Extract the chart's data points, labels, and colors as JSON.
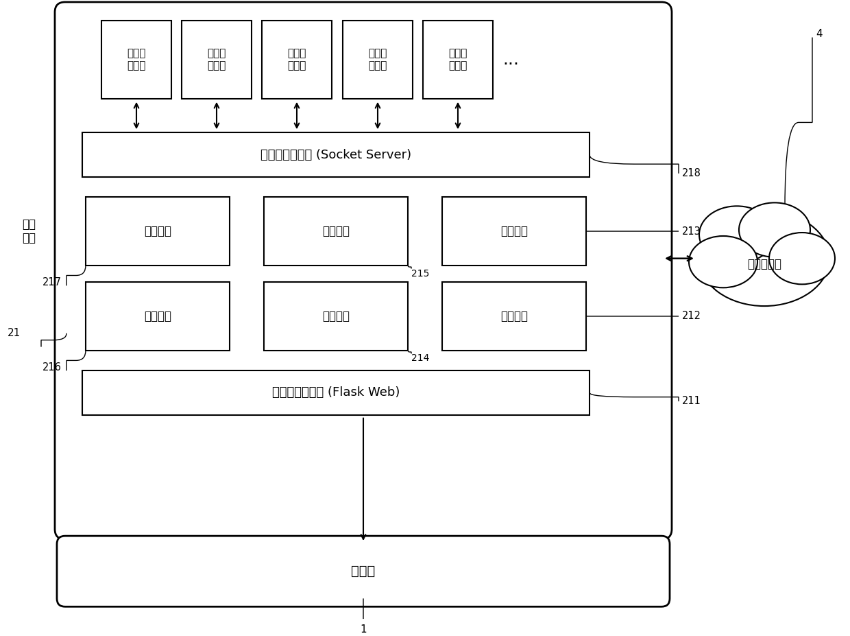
{
  "bg_color": "#ffffff",
  "box_color": "#ffffff",
  "box_edge_color": "#000000",
  "text_color": "#000000",
  "plugins": [
    "外设控\n制插件",
    "软件控\n制插件",
    "网络控\n制插件",
    "违规外\n联插件",
    "文件控\n制插件"
  ],
  "plugin_hub_label": "插件端心跳模块 (Socket Server)",
  "row1_modules": [
    "配置模块",
    "注册模块",
    "策略模块"
  ],
  "row2_modules": [
    "审计模块",
    "控制模块",
    "补丁模块"
  ],
  "flask_label": "服务端心跳模块 (Flask Web)",
  "server_label": "服务端",
  "db_label": "本地数据库",
  "container_label": "插件\n容器",
  "dots_label": "...",
  "label_21": "21",
  "label_211": "211",
  "label_212": "212",
  "label_213": "213",
  "label_214": "214",
  "label_215": "215",
  "label_216": "216",
  "label_217": "217",
  "label_218": "218",
  "label_1": "1",
  "label_4": "4"
}
